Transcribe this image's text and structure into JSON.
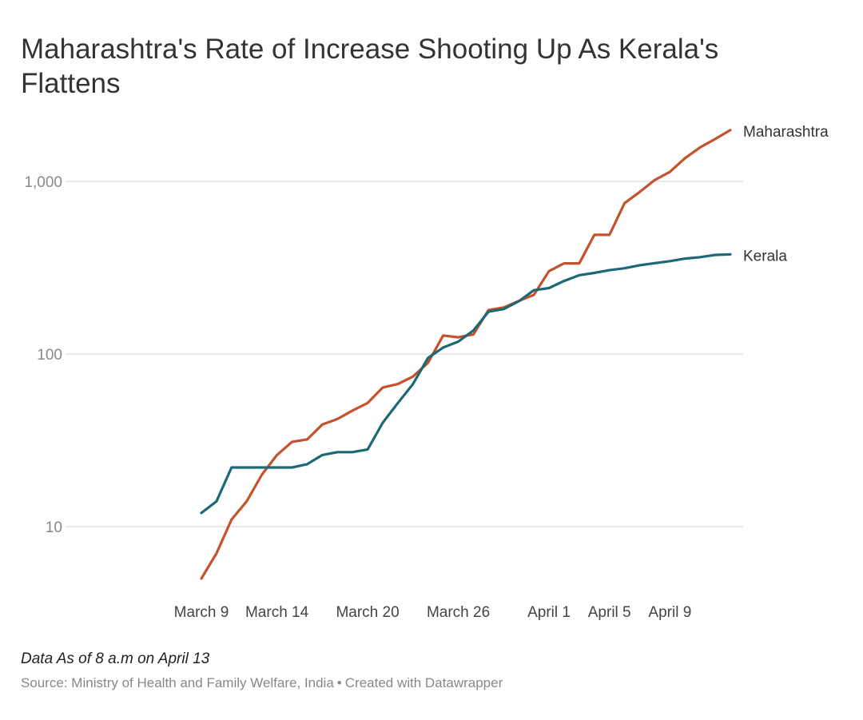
{
  "chart_data": {
    "type": "line",
    "title": "Maharashtra's Rate of Increase Shooting Up As Kerala's Flattens",
    "y_scale": "log",
    "ylim": [
      4,
      2500
    ],
    "y_ticks": [
      {
        "value": 10,
        "label": "10"
      },
      {
        "value": 100,
        "label": "100"
      },
      {
        "value": 1000,
        "label": "1,000"
      }
    ],
    "x_start": "March 9",
    "x_count": 36,
    "x_ticks": [
      {
        "index": 0,
        "label": "March 9"
      },
      {
        "index": 5,
        "label": "March 14"
      },
      {
        "index": 11,
        "label": "March 20"
      },
      {
        "index": 17,
        "label": "March 26"
      },
      {
        "index": 23,
        "label": "April 1"
      },
      {
        "index": 27,
        "label": "April 5"
      },
      {
        "index": 31,
        "label": "April 9"
      }
    ],
    "series": [
      {
        "name": "Maharashtra",
        "color": "#c5522c",
        "values": [
          5,
          7,
          11,
          14,
          20,
          26,
          31,
          32,
          39,
          42,
          47,
          52,
          64,
          67,
          74,
          89,
          128,
          125,
          130,
          180,
          186,
          203,
          220,
          302,
          335,
          335,
          490,
          490,
          748,
          868,
          1018,
          1135,
          1364,
          1574,
          1761,
          1982
        ]
      },
      {
        "name": "Kerala",
        "color": "#1c6877",
        "values": [
          12,
          14,
          22,
          22,
          22,
          22,
          22,
          23,
          26,
          27,
          27,
          28,
          40,
          52,
          67,
          95,
          109,
          118,
          137,
          176,
          182,
          202,
          234,
          241,
          265,
          286,
          295,
          306,
          314,
          327,
          336,
          345,
          357,
          364,
          375,
          378
        ]
      }
    ]
  },
  "footnote": "Data As of 8 a.m on April 13",
  "source": {
    "text": "Source: Ministry of Health and Family Welfare, India",
    "separator": "•",
    "credit": "Created with Datawrapper"
  }
}
